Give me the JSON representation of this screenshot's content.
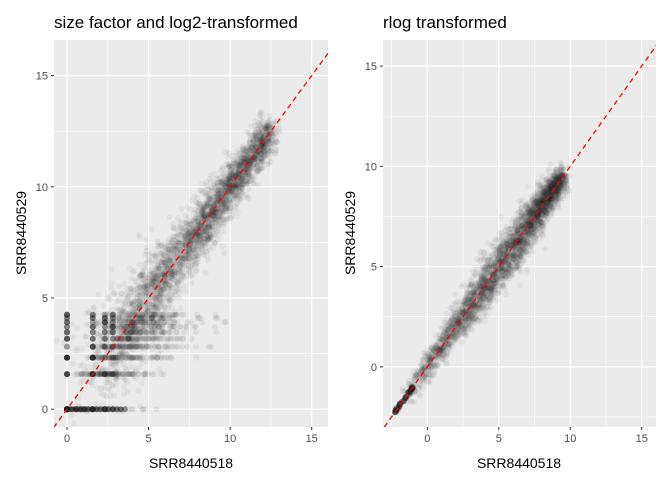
{
  "colors": {
    "panel_bg": "#ebebeb",
    "grid_major": "#ffffff",
    "point": "#1a1a1a",
    "identity_line": "#ff0000"
  },
  "chart_data": [
    {
      "type": "scatter",
      "title": "size factor and log2-transformed",
      "xlabel": "SRR8440518",
      "ylabel": "SRR8440529",
      "xlim": [
        -0.8,
        16
      ],
      "ylim": [
        -0.8,
        16.6
      ],
      "xticks": [
        0,
        5,
        10,
        15
      ],
      "yticks": [
        0,
        5,
        10,
        15
      ],
      "grid": true,
      "reference_line": {
        "type": "identity",
        "style": "dashed",
        "color": "#ff0000"
      },
      "point_alpha": 0.05,
      "discrete_levels": [
        0,
        1.58,
        2.32,
        2.81,
        3.17,
        3.46,
        3.7,
        3.91,
        4.1,
        4.25
      ],
      "spread": "fan shaped around identity, discrete bands at low counts",
      "approx_points": 3200
    },
    {
      "type": "scatter",
      "title": "rlog transformed",
      "xlabel": "SRR8440518",
      "ylabel": "SRR8440529",
      "xlim": [
        -3.1,
        16
      ],
      "ylim": [
        -3.0,
        16.3
      ],
      "xticks": [
        0,
        5,
        10,
        15
      ],
      "yticks": [
        0,
        5,
        10,
        15
      ],
      "grid": true,
      "reference_line": {
        "type": "identity",
        "style": "dashed",
        "color": "#ff0000"
      },
      "point_alpha": 0.05,
      "min_value": -2.3,
      "spread": "tight band around identity",
      "approx_points": 3200
    }
  ]
}
